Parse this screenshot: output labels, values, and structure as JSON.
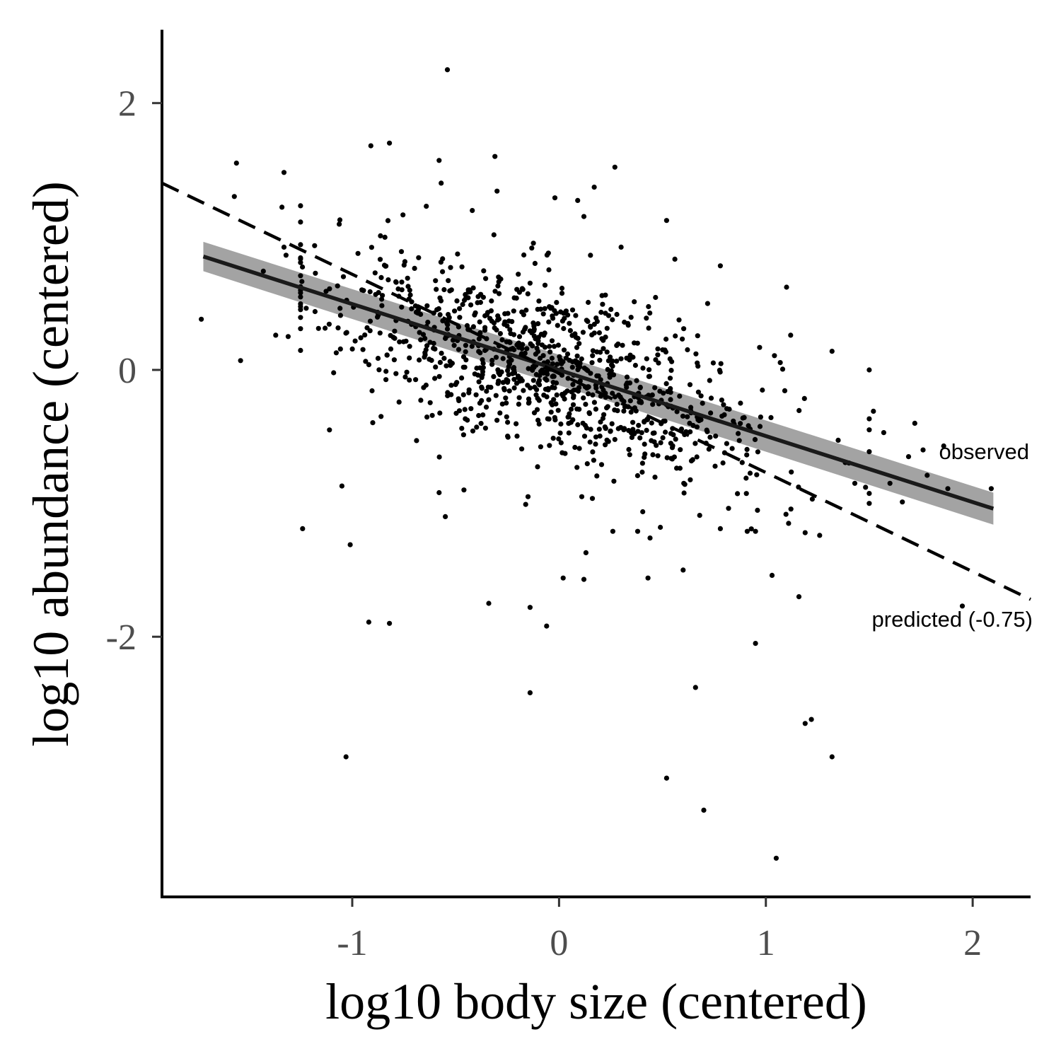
{
  "chart_data": {
    "type": "scatter",
    "title": "",
    "xlabel": "log10 body size (centered)",
    "ylabel": "log10 abundance (centered)",
    "xlim": [
      -1.92,
      2.28
    ],
    "ylim": [
      -3.95,
      2.55
    ],
    "xticks": [
      -1,
      0,
      1,
      2
    ],
    "yticks": [
      -2,
      0,
      2
    ],
    "xtick_labels": [
      "-1",
      "0",
      "1",
      "2"
    ],
    "ytick_labels": [
      "-2",
      "0",
      "2"
    ],
    "grid": false,
    "legend": "none",
    "point_color": "#000000",
    "points_labeled": [
      [
        -0.54,
        2.25
      ],
      [
        -0.82,
        1.7
      ],
      [
        -0.91,
        1.68
      ],
      [
        -1.56,
        1.55
      ],
      [
        -0.58,
        1.57
      ],
      [
        -0.31,
        1.6
      ],
      [
        0.27,
        1.52
      ],
      [
        -1.33,
        1.48
      ],
      [
        -0.57,
        1.4
      ],
      [
        -1.57,
        1.3
      ],
      [
        -1.34,
        1.22
      ],
      [
        0.17,
        1.37
      ],
      [
        -0.02,
        1.29
      ],
      [
        -0.3,
        1.34
      ],
      [
        0.09,
        1.27
      ],
      [
        0.12,
        1.15
      ],
      [
        0.52,
        1.12
      ],
      [
        -1.33,
        0.92
      ],
      [
        -1.32,
        0.86
      ],
      [
        0.3,
        0.92
      ],
      [
        -1.43,
        0.74
      ],
      [
        0.78,
        0.78
      ],
      [
        0.56,
        0.83
      ],
      [
        1.1,
        0.62
      ],
      [
        -1.73,
        0.38
      ],
      [
        -1.37,
        0.26
      ],
      [
        -1.31,
        0.25
      ],
      [
        -1.54,
        0.07
      ],
      [
        1.12,
        0.26
      ],
      [
        1.32,
        0.14
      ],
      [
        1.5,
        0.0
      ],
      [
        -1.11,
        -0.45
      ],
      [
        1.52,
        -0.31
      ],
      [
        1.72,
        -0.4
      ],
      [
        1.57,
        -0.47
      ],
      [
        1.76,
        -0.6
      ],
      [
        1.69,
        -0.65
      ],
      [
        1.86,
        -0.57
      ],
      [
        1.78,
        -0.79
      ],
      [
        2.09,
        -0.89
      ],
      [
        1.88,
        -0.89
      ],
      [
        1.6,
        -0.85
      ],
      [
        1.43,
        -0.85
      ],
      [
        1.66,
        -0.99
      ],
      [
        -0.55,
        -1.1
      ],
      [
        -1.24,
        -1.19
      ],
      [
        -1.01,
        -1.31
      ],
      [
        -1.05,
        -0.87
      ],
      [
        -0.58,
        -0.92
      ],
      [
        -0.46,
        -0.9
      ],
      [
        -0.15,
        -0.95
      ],
      [
        0.11,
        -0.95
      ],
      [
        0.26,
        -1.21
      ],
      [
        0.38,
        -1.21
      ],
      [
        0.44,
        -1.26
      ],
      [
        0.49,
        -1.18
      ],
      [
        0.68,
        -1.09
      ],
      [
        0.78,
        -1.19
      ],
      [
        0.91,
        -1.21
      ],
      [
        0.95,
        -1.21
      ],
      [
        1.11,
        -1.15
      ],
      [
        1.19,
        -1.22
      ],
      [
        1.26,
        -1.24
      ],
      [
        0.13,
        -1.37
      ],
      [
        0.02,
        -1.56
      ],
      [
        0.12,
        -1.57
      ],
      [
        0.43,
        -1.56
      ],
      [
        0.6,
        -1.5
      ],
      [
        1.03,
        -1.54
      ],
      [
        1.16,
        -1.7
      ],
      [
        1.95,
        -1.77
      ],
      [
        -0.34,
        -1.75
      ],
      [
        -0.14,
        -1.78
      ],
      [
        -0.06,
        -1.92
      ],
      [
        -0.92,
        -1.89
      ],
      [
        -0.82,
        -1.9
      ],
      [
        0.95,
        -2.05
      ],
      [
        -0.14,
        -2.42
      ],
      [
        0.66,
        -2.38
      ],
      [
        1.19,
        -2.65
      ],
      [
        1.22,
        -2.62
      ],
      [
        1.32,
        -2.9
      ],
      [
        -1.03,
        -2.9
      ],
      [
        0.52,
        -3.06
      ],
      [
        0.7,
        -3.3
      ],
      [
        1.05,
        -3.66
      ]
    ],
    "cloud": {
      "n": 1000,
      "x_mean": -0.05,
      "x_sd": 0.55,
      "slope": -0.47,
      "intercept": 0.0,
      "resid_sd": 0.33
    },
    "series": [
      {
        "name": "observed",
        "style": "solid",
        "color": "#1a1a1a",
        "x": [
          -1.72,
          2.1
        ],
        "y": [
          0.85,
          -1.04
        ],
        "ci_color": "#999999",
        "ci_upper": [
          0.96,
          -0.92
        ],
        "ci_lower": [
          0.74,
          -1.16
        ]
      },
      {
        "name": "predicted (-0.75)",
        "style": "dashed",
        "color": "#000000",
        "x": [
          -1.92,
          2.28
        ],
        "y": [
          1.4,
          -1.72
        ]
      }
    ]
  }
}
